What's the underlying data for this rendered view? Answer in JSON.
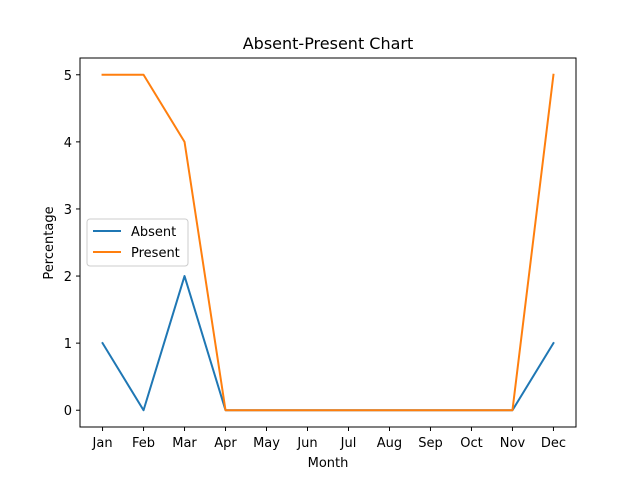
{
  "chart_data": {
    "type": "line",
    "title": "Absent-Present Chart",
    "xlabel": "Month",
    "ylabel": "Percentage",
    "categories": [
      "Jan",
      "Feb",
      "Mar",
      "Apr",
      "May",
      "Jun",
      "Jul",
      "Aug",
      "Sep",
      "Oct",
      "Nov",
      "Dec"
    ],
    "yticks": [
      0,
      1,
      2,
      3,
      4,
      5
    ],
    "ylim": [
      -0.25,
      5.25
    ],
    "grid": false,
    "legend_position": "center-left",
    "series": [
      {
        "name": "Absent",
        "color": "#1f77b4",
        "values": [
          1,
          0,
          2,
          0,
          0,
          0,
          0,
          0,
          0,
          0,
          0,
          1
        ]
      },
      {
        "name": "Present",
        "color": "#ff7f0e",
        "values": [
          5,
          5,
          4,
          0,
          0,
          0,
          0,
          0,
          0,
          0,
          0,
          5
        ]
      }
    ]
  }
}
